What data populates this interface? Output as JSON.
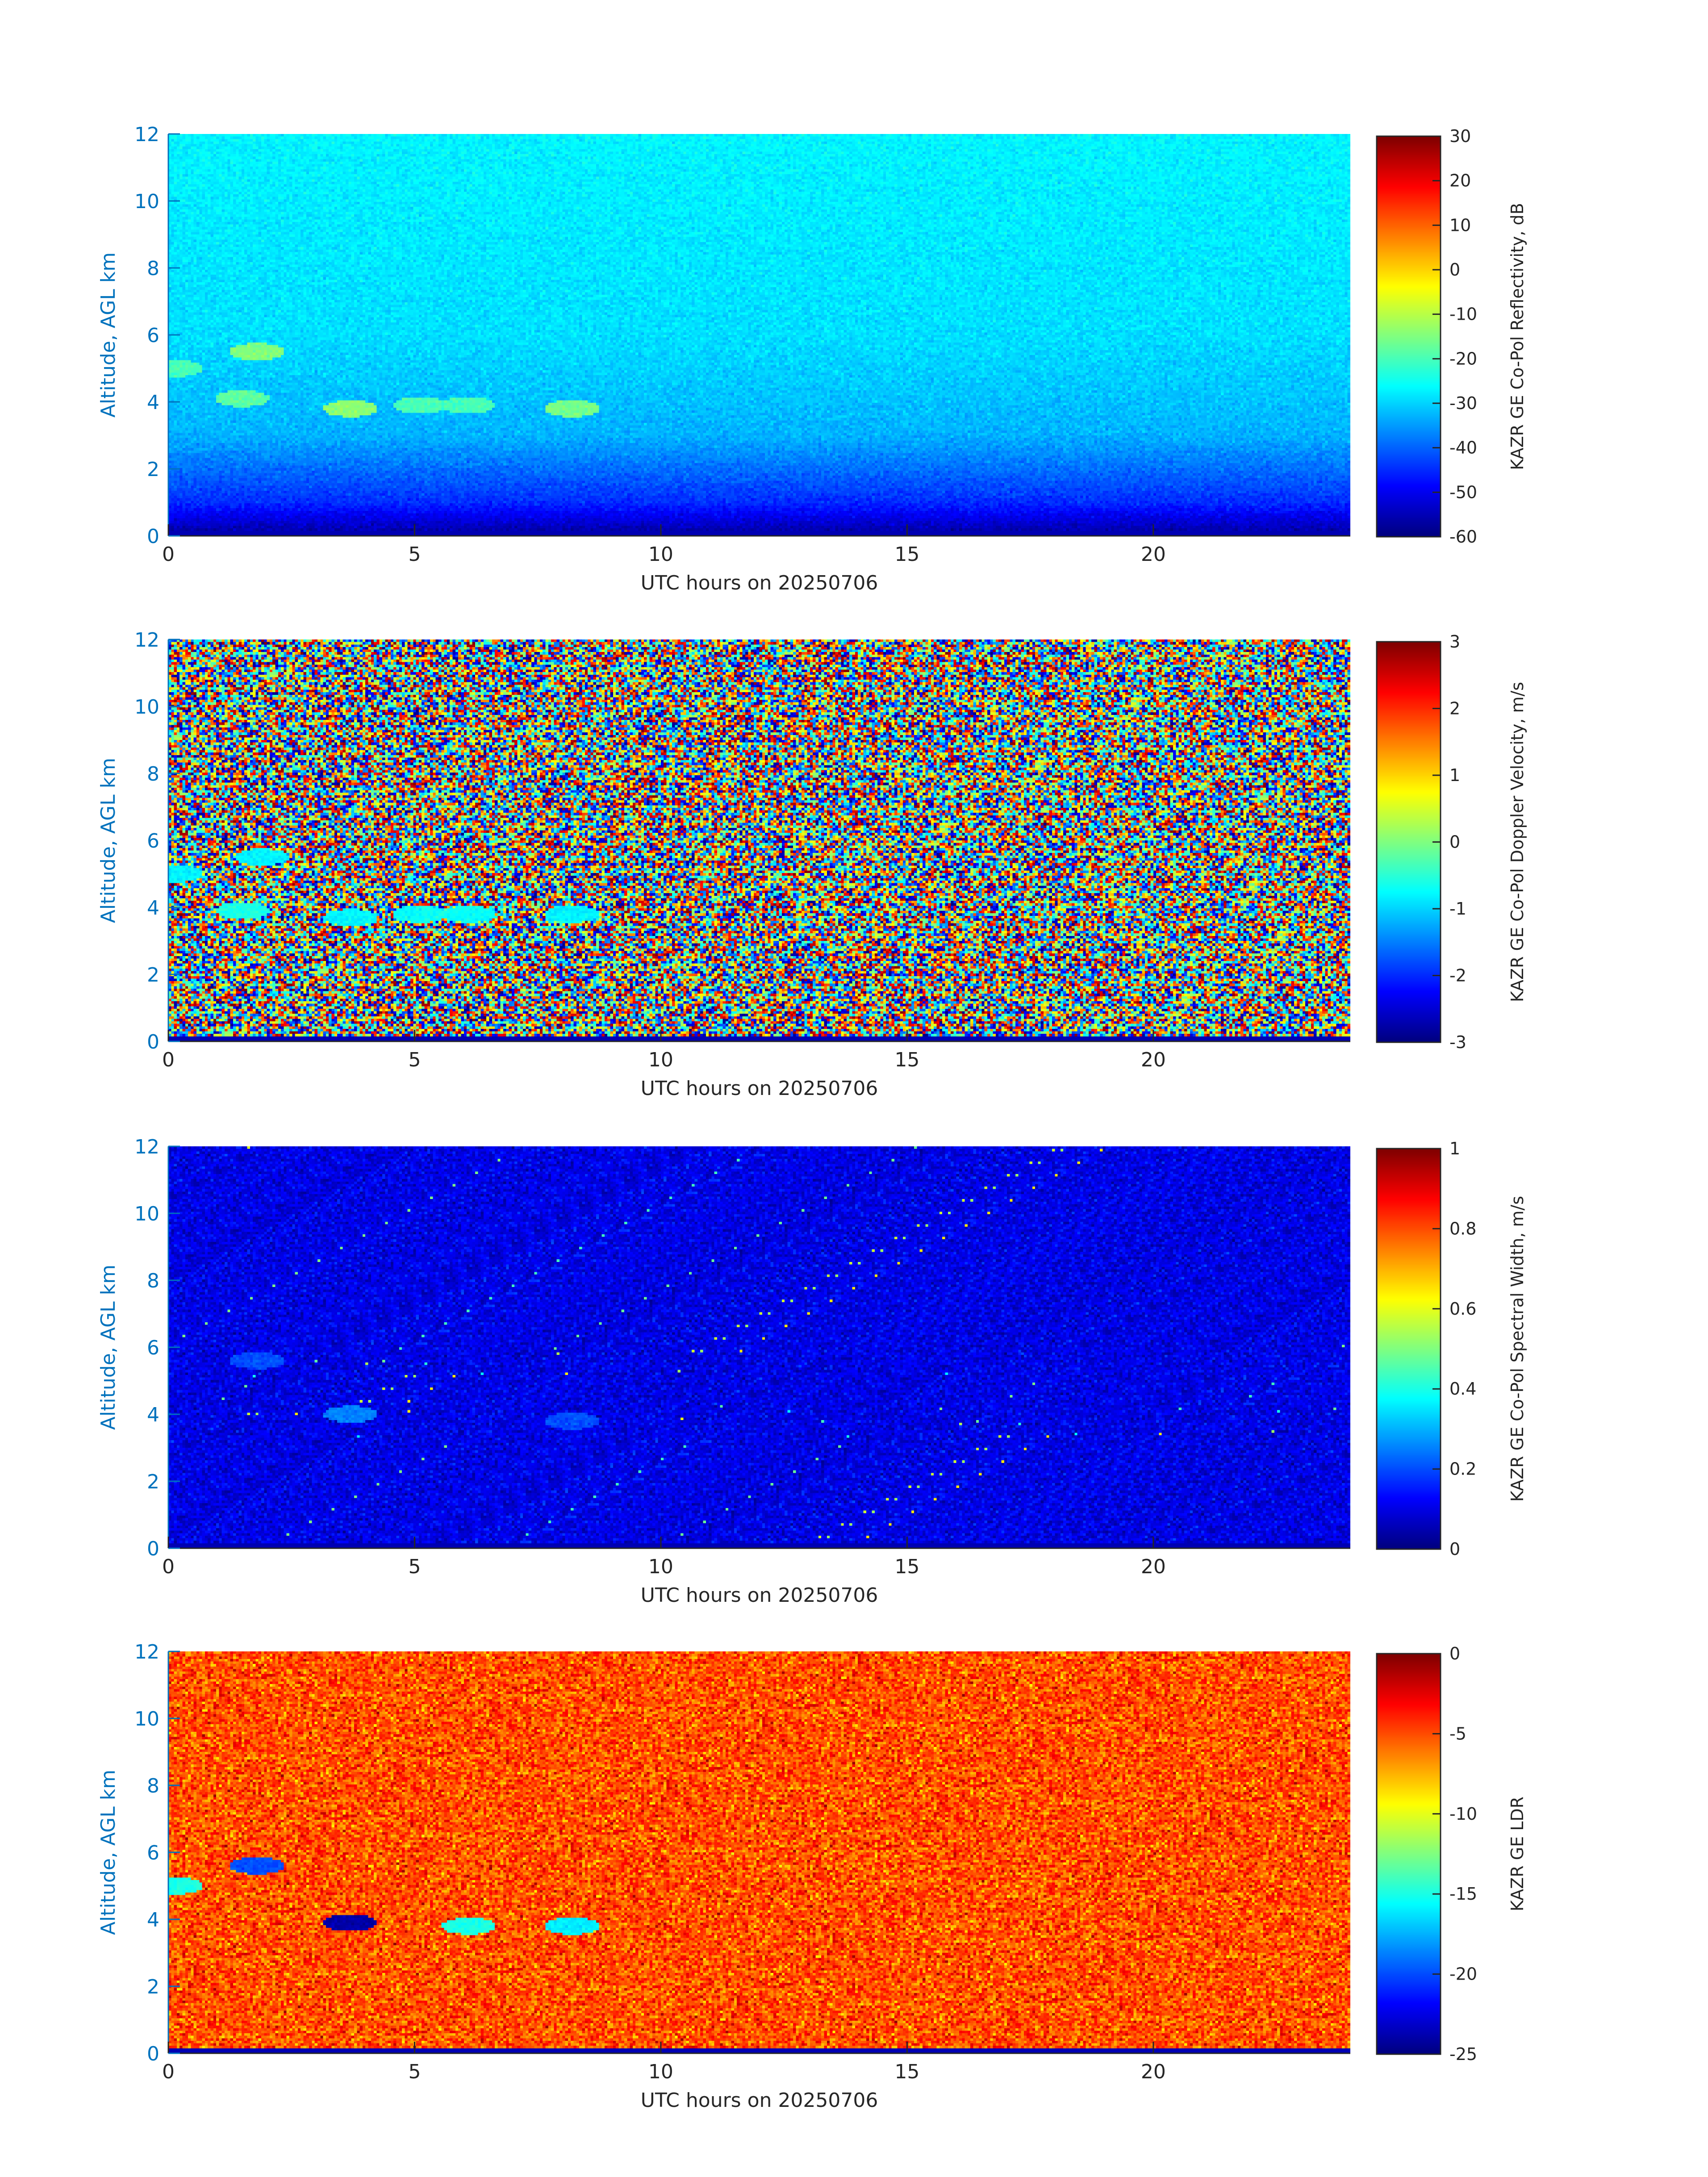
{
  "chart_data": [
    {
      "type": "heatmap",
      "field": "reflectivity",
      "xlabel": "UTC hours on 20250706",
      "ylabel": "Altitude, AGL km",
      "xlim": [
        0,
        24
      ],
      "ylim": [
        0,
        12
      ],
      "x_ticks": [
        0,
        5,
        10,
        15,
        20
      ],
      "y_ticks": [
        0,
        2,
        4,
        6,
        8,
        10,
        12
      ],
      "colorbar": {
        "label": "KAZR GE Co-Pol Reflectivity, dB",
        "range": [
          -60,
          30
        ],
        "ticks": [
          30,
          20,
          10,
          0,
          -10,
          -20,
          -30,
          -40,
          -50,
          -60
        ],
        "colormap": "jet"
      },
      "background_gradient": [
        {
          "altitude_km": 0,
          "value": -58
        },
        {
          "altitude_km": 1,
          "value": -45
        },
        {
          "altitude_km": 3,
          "value": -33
        },
        {
          "altitude_km": 6,
          "value": -29
        },
        {
          "altitude_km": 12,
          "value": -27
        }
      ],
      "cloud_features": [
        {
          "time_h": 0.15,
          "altitude_km": 5.0,
          "value": -20
        },
        {
          "time_h": 1.8,
          "altitude_km": 5.5,
          "value": -15
        },
        {
          "time_h": 1.5,
          "altitude_km": 4.1,
          "value": -18
        },
        {
          "time_h": 3.7,
          "altitude_km": 3.8,
          "value": -14
        },
        {
          "time_h": 5.1,
          "altitude_km": 3.9,
          "value": -20
        },
        {
          "time_h": 6.1,
          "altitude_km": 3.9,
          "value": -20
        },
        {
          "time_h": 8.2,
          "altitude_km": 3.8,
          "value": -16
        }
      ]
    },
    {
      "type": "heatmap",
      "field": "doppler_velocity",
      "xlabel": "UTC hours on 20250706",
      "ylabel": "Altitude, AGL km",
      "xlim": [
        0,
        24
      ],
      "ylim": [
        0,
        12
      ],
      "x_ticks": [
        0,
        5,
        10,
        15,
        20
      ],
      "y_ticks": [
        0,
        2,
        4,
        6,
        8,
        10,
        12
      ],
      "colorbar": {
        "label": "KAZR GE Co-Pol Doppler Velocity, m/s",
        "range": [
          -3,
          3
        ],
        "ticks": [
          3,
          2,
          1,
          0,
          -1,
          -2,
          -3
        ],
        "colormap": "jet"
      },
      "background": "uniform random noise over full range",
      "cloud_features": [
        {
          "time_h": 0.15,
          "altitude_km": 5.0,
          "value": -0.8
        },
        {
          "time_h": 1.9,
          "altitude_km": 5.5,
          "value": -0.8
        },
        {
          "time_h": 1.5,
          "altitude_km": 3.9,
          "value": -0.6
        },
        {
          "time_h": 3.7,
          "altitude_km": 3.7,
          "value": -0.8
        },
        {
          "time_h": 5.1,
          "altitude_km": 3.8,
          "value": -0.7
        },
        {
          "time_h": 6.1,
          "altitude_km": 3.8,
          "value": -0.7
        },
        {
          "time_h": 8.2,
          "altitude_km": 3.8,
          "value": -0.8
        }
      ]
    },
    {
      "type": "heatmap",
      "field": "spectral_width",
      "xlabel": "UTC hours on 20250706",
      "ylabel": "Altitude, AGL km",
      "xlim": [
        0,
        24
      ],
      "ylim": [
        0,
        12
      ],
      "x_ticks": [
        0,
        5,
        10,
        15,
        20
      ],
      "y_ticks": [
        0,
        2,
        4,
        6,
        8,
        10,
        12
      ],
      "colorbar": {
        "label": "KAZR GE Co-Pol Spectral Width, m/s",
        "range": [
          0,
          1
        ],
        "ticks": [
          1,
          0.8,
          0.6,
          0.4,
          0.2,
          0
        ],
        "colormap": "jet"
      },
      "background_value": 0.1,
      "cloud_features": [
        {
          "time_h": 1.8,
          "altitude_km": 5.6,
          "value": 0.2
        },
        {
          "time_h": 3.7,
          "altitude_km": 4.0,
          "value": 0.25
        },
        {
          "time_h": 8.2,
          "altitude_km": 3.8,
          "value": 0.2
        }
      ]
    },
    {
      "type": "heatmap",
      "field": "ldr",
      "xlabel": "UTC hours on 20250706",
      "ylabel": "Altitude, AGL km",
      "xlim": [
        0,
        24
      ],
      "ylim": [
        0,
        12
      ],
      "x_ticks": [
        0,
        5,
        10,
        15,
        20
      ],
      "y_ticks": [
        0,
        2,
        4,
        6,
        8,
        10,
        12
      ],
      "colorbar": {
        "label": "KAZR GE LDR",
        "range": [
          -25,
          0
        ],
        "ticks": [
          0,
          -5,
          -10,
          -15,
          -20,
          -25
        ],
        "colormap": "jet"
      },
      "background_value": -5,
      "cloud_features": [
        {
          "time_h": 0.15,
          "altitude_km": 5.0,
          "value": -15
        },
        {
          "time_h": 1.8,
          "altitude_km": 5.6,
          "value": -20
        },
        {
          "time_h": 3.7,
          "altitude_km": 3.9,
          "value": -24
        },
        {
          "time_h": 6.1,
          "altitude_km": 3.8,
          "value": -15
        },
        {
          "time_h": 8.2,
          "altitude_km": 3.8,
          "value": -16
        }
      ]
    }
  ]
}
